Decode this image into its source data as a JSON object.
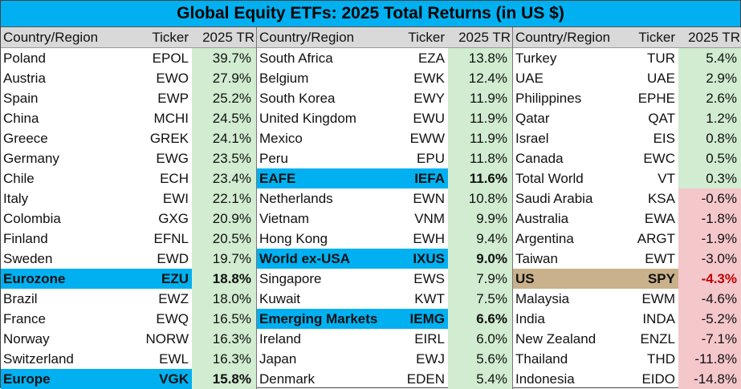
{
  "title": "Global Equity ETFs: 2025 Total Returns (in US $)",
  "headers": {
    "country": "Country/Region",
    "ticker": "Ticker",
    "tr": "2025 TR"
  },
  "colors": {
    "title_bg": "#00b0f0",
    "header_bg": "#d9d9d9",
    "positive_bg": "#d1ecd1",
    "negative_bg": "#f4c7cb",
    "highlight_blue": "#00b0f0",
    "highlight_gold": "#c9b18b",
    "negative_text": "#c00000"
  },
  "chart_data": {
    "type": "table",
    "title": "Global Equity ETFs: 2025 Total Returns (in US $)",
    "columns": [
      "Country/Region",
      "Ticker",
      "2025 TR"
    ],
    "rows": [
      {
        "country": "Poland",
        "ticker": "EPOL",
        "tr": "39.7%",
        "value": 39.7
      },
      {
        "country": "Austria",
        "ticker": "EWO",
        "tr": "27.9%",
        "value": 27.9
      },
      {
        "country": "Spain",
        "ticker": "EWP",
        "tr": "25.2%",
        "value": 25.2
      },
      {
        "country": "China",
        "ticker": "MCHI",
        "tr": "24.5%",
        "value": 24.5
      },
      {
        "country": "Greece",
        "ticker": "GREK",
        "tr": "24.1%",
        "value": 24.1
      },
      {
        "country": "Germany",
        "ticker": "EWG",
        "tr": "23.5%",
        "value": 23.5
      },
      {
        "country": "Chile",
        "ticker": "ECH",
        "tr": "23.4%",
        "value": 23.4
      },
      {
        "country": "Italy",
        "ticker": "EWI",
        "tr": "22.1%",
        "value": 22.1
      },
      {
        "country": "Colombia",
        "ticker": "GXG",
        "tr": "20.9%",
        "value": 20.9
      },
      {
        "country": "Finland",
        "ticker": "EFNL",
        "tr": "20.5%",
        "value": 20.5
      },
      {
        "country": "Sweden",
        "ticker": "EWD",
        "tr": "19.7%",
        "value": 19.7
      },
      {
        "country": "Eurozone",
        "ticker": "EZU",
        "tr": "18.8%",
        "value": 18.8,
        "highlight": "blue"
      },
      {
        "country": "Brazil",
        "ticker": "EWZ",
        "tr": "18.0%",
        "value": 18.0
      },
      {
        "country": "France",
        "ticker": "EWQ",
        "tr": "16.5%",
        "value": 16.5
      },
      {
        "country": "Norway",
        "ticker": "NORW",
        "tr": "16.3%",
        "value": 16.3
      },
      {
        "country": "Switzerland",
        "ticker": "EWL",
        "tr": "16.3%",
        "value": 16.3
      },
      {
        "country": "Europe",
        "ticker": "VGK",
        "tr": "15.8%",
        "value": 15.8,
        "highlight": "blue"
      },
      {
        "country": "South Africa",
        "ticker": "EZA",
        "tr": "13.8%",
        "value": 13.8
      },
      {
        "country": "Belgium",
        "ticker": "EWK",
        "tr": "12.4%",
        "value": 12.4
      },
      {
        "country": "South Korea",
        "ticker": "EWY",
        "tr": "11.9%",
        "value": 11.9
      },
      {
        "country": "United Kingdom",
        "ticker": "EWU",
        "tr": "11.9%",
        "value": 11.9
      },
      {
        "country": "Mexico",
        "ticker": "EWW",
        "tr": "11.9%",
        "value": 11.9
      },
      {
        "country": "Peru",
        "ticker": "EPU",
        "tr": "11.8%",
        "value": 11.8
      },
      {
        "country": "EAFE",
        "ticker": "IEFA",
        "tr": "11.6%",
        "value": 11.6,
        "highlight": "blue"
      },
      {
        "country": "Netherlands",
        "ticker": "EWN",
        "tr": "10.8%",
        "value": 10.8
      },
      {
        "country": "Vietnam",
        "ticker": "VNM",
        "tr": "9.9%",
        "value": 9.9
      },
      {
        "country": "Hong Kong",
        "ticker": "EWH",
        "tr": "9.4%",
        "value": 9.4
      },
      {
        "country": "World ex-USA",
        "ticker": "IXUS",
        "tr": "9.0%",
        "value": 9.0,
        "highlight": "blue"
      },
      {
        "country": "Singapore",
        "ticker": "EWS",
        "tr": "7.9%",
        "value": 7.9
      },
      {
        "country": "Kuwait",
        "ticker": "KWT",
        "tr": "7.5%",
        "value": 7.5
      },
      {
        "country": "Emerging Markets",
        "ticker": "IEMG",
        "tr": "6.6%",
        "value": 6.6,
        "highlight": "blue"
      },
      {
        "country": "Ireland",
        "ticker": "EIRL",
        "tr": "6.0%",
        "value": 6.0
      },
      {
        "country": "Japan",
        "ticker": "EWJ",
        "tr": "5.6%",
        "value": 5.6
      },
      {
        "country": "Denmark",
        "ticker": "EDEN",
        "tr": "5.4%",
        "value": 5.4
      },
      {
        "country": "Turkey",
        "ticker": "TUR",
        "tr": "5.4%",
        "value": 5.4
      },
      {
        "country": "UAE",
        "ticker": "UAE",
        "tr": "2.9%",
        "value": 2.9
      },
      {
        "country": "Philippines",
        "ticker": "EPHE",
        "tr": "2.6%",
        "value": 2.6
      },
      {
        "country": "Qatar",
        "ticker": "QAT",
        "tr": "1.2%",
        "value": 1.2
      },
      {
        "country": "Israel",
        "ticker": "EIS",
        "tr": "0.8%",
        "value": 0.8
      },
      {
        "country": "Canada",
        "ticker": "EWC",
        "tr": "0.5%",
        "value": 0.5
      },
      {
        "country": "Total World",
        "ticker": "VT",
        "tr": "0.3%",
        "value": 0.3
      },
      {
        "country": "Saudi Arabia",
        "ticker": "KSA",
        "tr": "-0.6%",
        "value": -0.6
      },
      {
        "country": "Australia",
        "ticker": "EWA",
        "tr": "-1.8%",
        "value": -1.8
      },
      {
        "country": "Argentina",
        "ticker": "ARGT",
        "tr": "-1.9%",
        "value": -1.9
      },
      {
        "country": "Taiwan",
        "ticker": "EWT",
        "tr": "-3.0%",
        "value": -3.0
      },
      {
        "country": "US",
        "ticker": "SPY",
        "tr": "-4.3%",
        "value": -4.3,
        "highlight": "gold"
      },
      {
        "country": "Malaysia",
        "ticker": "EWM",
        "tr": "-4.6%",
        "value": -4.6
      },
      {
        "country": "India",
        "ticker": "INDA",
        "tr": "-5.2%",
        "value": -5.2
      },
      {
        "country": "New Zealand",
        "ticker": "ENZL",
        "tr": "-7.1%",
        "value": -7.1
      },
      {
        "country": "Thailand",
        "ticker": "THD",
        "tr": "-11.8%",
        "value": -11.8
      },
      {
        "country": "Indonesia",
        "ticker": "EIDO",
        "tr": "-14.8%",
        "value": -14.8
      }
    ]
  }
}
